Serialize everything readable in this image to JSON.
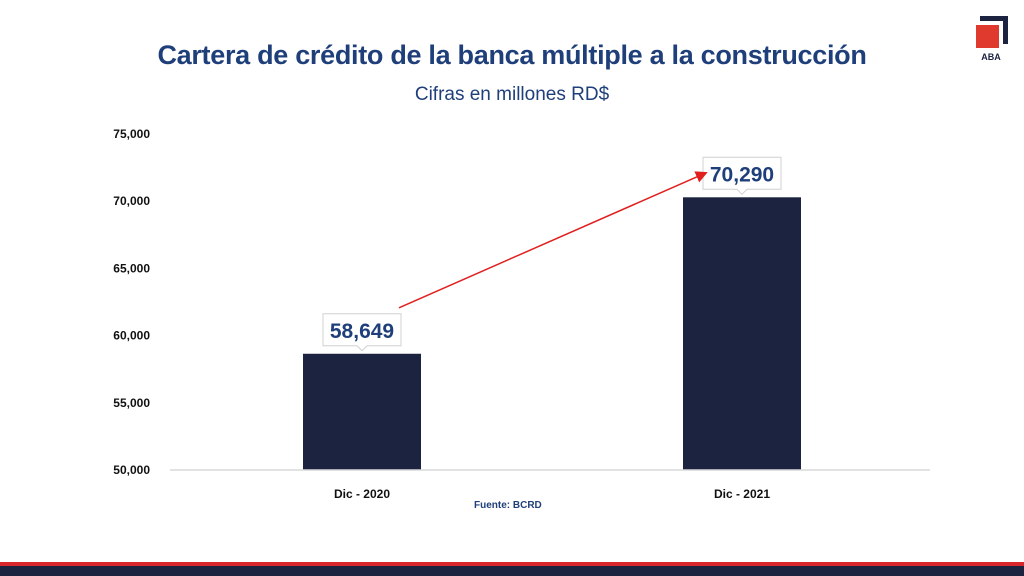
{
  "title": "Cartera de crédito de la banca múltiple a la construcción",
  "subtitle": "Cifras en millones RD$",
  "logo": {
    "text": "ABA",
    "icon": "aba-logo-icon"
  },
  "source": "Fuente: BCRD",
  "colors": {
    "title": "#1f3f7a",
    "bar": "#1c2340",
    "label_text": "#1f3f7a",
    "arrow": "#e02020",
    "logo_red": "#e03a2f",
    "logo_navy": "#1c2340",
    "footer_red": "#d9262c",
    "footer_navy": "#1c2340"
  },
  "chart_data": {
    "type": "bar",
    "categories": [
      "Dic - 2020",
      "Dic - 2021"
    ],
    "values": [
      58649,
      70290
    ],
    "value_labels": [
      "58,649",
      "70,290"
    ],
    "ylim": [
      50000,
      75000
    ],
    "yticks": [
      "50,000",
      "55,000",
      "60,000",
      "65,000",
      "70,000",
      "75,000"
    ],
    "ytick_values": [
      50000,
      55000,
      60000,
      65000,
      70000,
      75000
    ],
    "grid": false,
    "legend": "none",
    "annotation": "arrow from first value label to second value label"
  }
}
